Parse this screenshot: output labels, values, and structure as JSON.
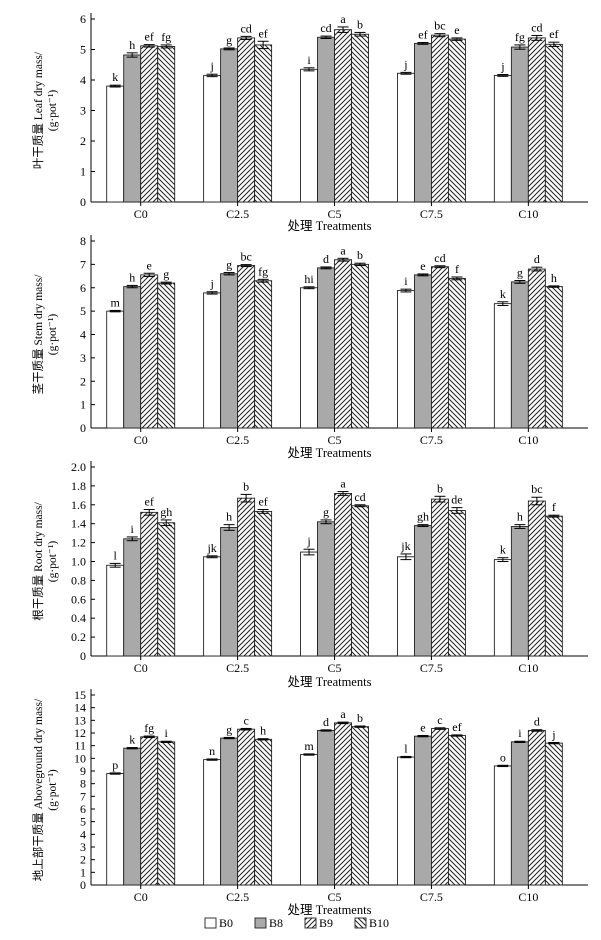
{
  "chart_data": [
    {
      "type": "bar",
      "ylabel": "叶干质量 Leaf dry mass/ (g·pot⁻¹)",
      "xlabel": "处理 Treatments",
      "ylim": [
        0,
        6
      ],
      "yticks": [
        "0",
        "1",
        "2",
        "3",
        "4",
        "5",
        "6"
      ],
      "categories": [
        "C0",
        "C2.5",
        "C5",
        "C7.5",
        "C10"
      ],
      "series": [
        {
          "name": "B0",
          "values": [
            3.8,
            4.15,
            4.35,
            4.22,
            4.15
          ],
          "errors": [
            0.03,
            0.04,
            0.05,
            0.03,
            0.03
          ],
          "letters": [
            "k",
            "j",
            "i",
            "j",
            "j"
          ]
        },
        {
          "name": "B8",
          "values": [
            4.82,
            5.02,
            5.4,
            5.2,
            5.08
          ],
          "errors": [
            0.07,
            0.03,
            0.04,
            0.03,
            0.07
          ],
          "letters": [
            "h",
            "g",
            "cd",
            "ef",
            "fg"
          ]
        },
        {
          "name": "B9",
          "values": [
            5.12,
            5.38,
            5.65,
            5.47,
            5.38
          ],
          "errors": [
            0.04,
            0.05,
            0.09,
            0.05,
            0.08
          ],
          "letters": [
            "ef",
            "cd",
            "a",
            "bc",
            "cd"
          ]
        },
        {
          "name": "B10",
          "values": [
            5.1,
            5.15,
            5.5,
            5.34,
            5.17
          ],
          "errors": [
            0.05,
            0.12,
            0.06,
            0.04,
            0.07
          ],
          "letters": [
            "fg",
            "ef",
            "b",
            "e",
            "ef"
          ]
        }
      ]
    },
    {
      "type": "bar",
      "ylabel": "茎干质量 Stem dry mass/ (g·pot⁻¹)",
      "xlabel": "处理 Treatments",
      "ylim": [
        0,
        8
      ],
      "yticks": [
        "0",
        "1",
        "2",
        "3",
        "4",
        "5",
        "6",
        "7",
        "8"
      ],
      "categories": [
        "C0",
        "C2.5",
        "C5",
        "C7.5",
        "C10"
      ],
      "series": [
        {
          "name": "B0",
          "values": [
            5.0,
            5.78,
            6.0,
            5.88,
            5.32
          ],
          "errors": [
            0.03,
            0.05,
            0.04,
            0.06,
            0.08
          ],
          "letters": [
            "m",
            "j",
            "hi",
            "i",
            "k"
          ]
        },
        {
          "name": "B8",
          "values": [
            6.05,
            6.6,
            6.85,
            6.55,
            6.25
          ],
          "errors": [
            0.05,
            0.05,
            0.04,
            0.04,
            0.06
          ],
          "letters": [
            "h",
            "g",
            "d",
            "e",
            "g"
          ]
        },
        {
          "name": "B9",
          "values": [
            6.55,
            6.95,
            7.2,
            6.9,
            6.8
          ],
          "errors": [
            0.07,
            0.04,
            0.06,
            0.04,
            0.08
          ],
          "letters": [
            "e",
            "bc",
            "a",
            "cd",
            "d"
          ]
        },
        {
          "name": "B10",
          "values": [
            6.2,
            6.3,
            7.0,
            6.4,
            6.05
          ],
          "errors": [
            0.04,
            0.06,
            0.05,
            0.06,
            0.03
          ],
          "letters": [
            "g",
            "fg",
            "b",
            "f",
            "h"
          ]
        }
      ]
    },
    {
      "type": "bar",
      "ylabel": "根干质量 Root dry mass/ (g·pot⁻¹)",
      "xlabel": "处理 Treatments",
      "ylim": [
        0,
        2.0
      ],
      "yticks": [
        "0",
        "0.2",
        "0.4",
        "0.6",
        "0.8",
        "1.0",
        "1.2",
        "1.4",
        "1.6",
        "1.8",
        "2.0"
      ],
      "categories": [
        "C0",
        "C2.5",
        "C5",
        "C7.5",
        "C10"
      ],
      "series": [
        {
          "name": "B0",
          "values": [
            0.96,
            1.05,
            1.1,
            1.05,
            1.02
          ],
          "errors": [
            0.02,
            0.01,
            0.03,
            0.03,
            0.02
          ],
          "letters": [
            "l",
            "jk",
            "j",
            "jk",
            "k"
          ]
        },
        {
          "name": "B8",
          "values": [
            1.24,
            1.36,
            1.42,
            1.38,
            1.37
          ],
          "errors": [
            0.02,
            0.03,
            0.02,
            0.01,
            0.02
          ],
          "letters": [
            "i",
            "h",
            "g",
            "gh",
            "h"
          ]
        },
        {
          "name": "B9",
          "values": [
            1.52,
            1.67,
            1.72,
            1.66,
            1.64
          ],
          "errors": [
            0.03,
            0.04,
            0.02,
            0.03,
            0.04
          ],
          "letters": [
            "ef",
            "b",
            "a",
            "b",
            "bc"
          ]
        },
        {
          "name": "B10",
          "values": [
            1.41,
            1.53,
            1.59,
            1.54,
            1.48
          ],
          "errors": [
            0.03,
            0.02,
            0.01,
            0.03,
            0.01
          ],
          "letters": [
            "gh",
            "ef",
            "cd",
            "de",
            "f"
          ]
        }
      ]
    },
    {
      "type": "bar",
      "ylabel": "地上部干质量 Aboveground dry mass/ (g·pot⁻¹)",
      "xlabel": "处理 Treatments",
      "ylim": [
        0,
        15
      ],
      "yticks": [
        "0",
        "1",
        "2",
        "3",
        "4",
        "5",
        "6",
        "7",
        "8",
        "9",
        "10",
        "11",
        "12",
        "13",
        "14",
        "15"
      ],
      "categories": [
        "C0",
        "C2.5",
        "C5",
        "C7.5",
        "C10"
      ],
      "series": [
        {
          "name": "B0",
          "values": [
            8.8,
            9.9,
            10.3,
            10.1,
            9.4
          ],
          "errors": [
            0.05,
            0.05,
            0.05,
            0.05,
            0.05
          ],
          "letters": [
            "p",
            "n",
            "m",
            "l",
            "o"
          ]
        },
        {
          "name": "B8",
          "values": [
            10.8,
            11.6,
            12.2,
            11.75,
            11.3
          ],
          "errors": [
            0.05,
            0.05,
            0.05,
            0.05,
            0.05
          ],
          "letters": [
            "k",
            "g",
            "d",
            "e",
            "i"
          ]
        },
        {
          "name": "B9",
          "values": [
            11.7,
            12.3,
            12.8,
            12.35,
            12.2
          ],
          "errors": [
            0.06,
            0.06,
            0.06,
            0.06,
            0.06
          ],
          "letters": [
            "fg",
            "c",
            "a",
            "c",
            "d"
          ]
        },
        {
          "name": "B10",
          "values": [
            11.3,
            11.5,
            12.5,
            11.8,
            11.2
          ],
          "errors": [
            0.05,
            0.05,
            0.05,
            0.05,
            0.05
          ],
          "letters": [
            "i",
            "h",
            "b",
            "ef",
            "j"
          ]
        }
      ]
    }
  ],
  "legend": [
    {
      "name": "B0",
      "fill": "white"
    },
    {
      "name": "B8",
      "fill": "gray"
    },
    {
      "name": "B9",
      "fill": "diag"
    },
    {
      "name": "B10",
      "fill": "crosshatch"
    }
  ],
  "colors": {
    "gray": "#a9a9a9",
    "axis": "#000000",
    "stroke": "#333333"
  }
}
